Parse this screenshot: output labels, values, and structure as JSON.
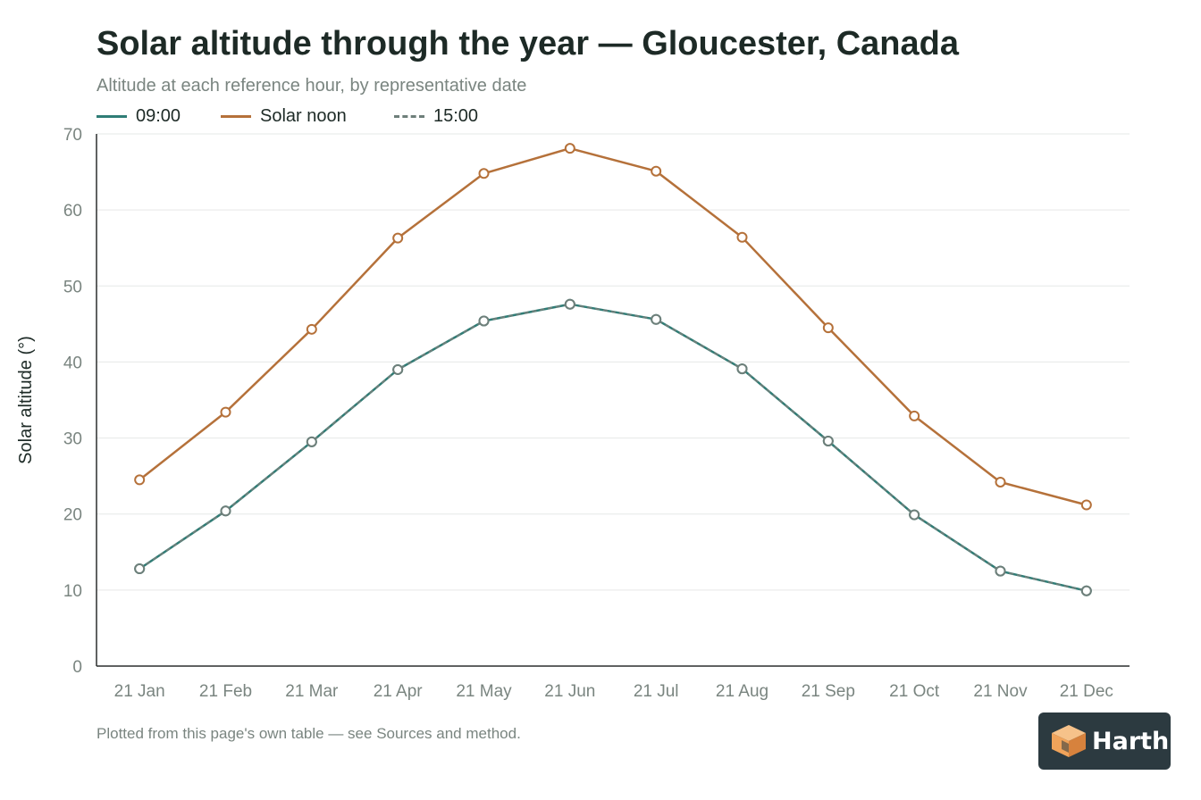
{
  "header": {
    "title": "Solar altitude through the year — Gloucester, Canada",
    "subtitle": "Altitude at each reference hour, by representative date"
  },
  "legend": [
    {
      "label": "09:00",
      "color": "#2f7d76",
      "style": "solid"
    },
    {
      "label": "Solar noon",
      "color": "#b5713a",
      "style": "solid"
    },
    {
      "label": "15:00",
      "color": "#6e7f7a",
      "style": "dashed"
    }
  ],
  "footnote": "Plotted from this page's own table — see Sources and method.",
  "brand": {
    "name": "Harth",
    "icon": "cube-logo-icon",
    "accent": "#f0a35a"
  },
  "chart_data": {
    "type": "line",
    "ylabel": "Solar altitude (°)",
    "xlabel": "",
    "ylim": [
      0,
      70
    ],
    "yticks": [
      0,
      10,
      20,
      30,
      40,
      50,
      60,
      70
    ],
    "grid": true,
    "legend_position": "top-left",
    "categories": [
      "21 Jan",
      "21 Feb",
      "21 Mar",
      "21 Apr",
      "21 May",
      "21 Jun",
      "21 Jul",
      "21 Aug",
      "21 Sep",
      "21 Oct",
      "21 Nov",
      "21 Dec"
    ],
    "series": [
      {
        "name": "09:00",
        "color": "#2f7d76",
        "dashed": false,
        "values": [
          12.8,
          20.4,
          29.5,
          39.0,
          45.4,
          47.6,
          45.6,
          39.1,
          29.6,
          19.9,
          12.5,
          9.9
        ]
      },
      {
        "name": "Solar noon",
        "color": "#b5713a",
        "dashed": false,
        "values": [
          24.5,
          33.4,
          44.3,
          56.3,
          64.8,
          68.1,
          65.1,
          56.4,
          44.5,
          32.9,
          24.2,
          21.2
        ]
      },
      {
        "name": "15:00",
        "color": "#6e7f7a",
        "dashed": true,
        "values": [
          12.8,
          20.4,
          29.5,
          39.0,
          45.4,
          47.6,
          45.6,
          39.1,
          29.6,
          19.9,
          12.5,
          9.9
        ]
      }
    ]
  }
}
